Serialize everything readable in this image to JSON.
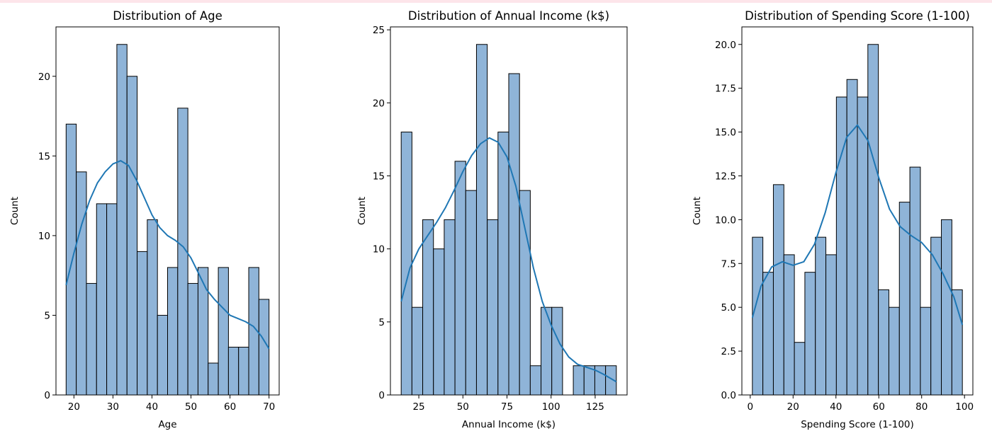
{
  "colors": {
    "bar_fill": "#8fb4d8",
    "bar_edge": "#000000",
    "kde_line": "#1f77b4",
    "background": "#ffffff"
  },
  "chart_data": [
    {
      "type": "bar",
      "title": "Distribution of Age",
      "xlabel": "Age",
      "ylabel": "Count",
      "xlim": [
        15.4,
        72.6
      ],
      "ylim": [
        0,
        23.1
      ],
      "x_ticks": [
        20,
        30,
        40,
        50,
        60,
        70
      ],
      "x_tick_labels": [
        "20",
        "30",
        "40",
        "50",
        "60",
        "70"
      ],
      "y_ticks": [
        0,
        5,
        10,
        15,
        20
      ],
      "y_tick_labels": [
        "0",
        "5",
        "10",
        "15",
        "20"
      ],
      "bin_edges": [
        18,
        20.6,
        23.2,
        25.8,
        28.4,
        31,
        33.6,
        36.2,
        38.8,
        41.4,
        44,
        46.6,
        49.2,
        51.8,
        54.4,
        57,
        59.6,
        62.2,
        64.8,
        67.4,
        70
      ],
      "values": [
        17,
        14,
        7,
        12,
        12,
        22,
        20,
        9,
        11,
        5,
        8,
        18,
        7,
        8,
        2,
        8,
        3,
        3,
        8,
        6
      ],
      "kde": {
        "x": [
          18,
          20,
          22,
          24,
          26,
          28,
          30,
          32,
          34,
          36,
          38,
          40,
          42,
          44,
          46,
          48,
          50,
          52,
          54,
          56,
          58,
          60,
          62,
          64,
          66,
          68,
          70
        ],
        "y": [
          6.9,
          8.9,
          10.7,
          12.2,
          13.3,
          14.0,
          14.5,
          14.7,
          14.4,
          13.5,
          12.4,
          11.3,
          10.5,
          10.0,
          9.7,
          9.3,
          8.6,
          7.6,
          6.6,
          6.0,
          5.5,
          5.0,
          4.8,
          4.6,
          4.3,
          3.7,
          2.9
        ]
      }
    },
    {
      "type": "bar",
      "title": "Distribution of Annual Income (k$)",
      "xlabel": "Annual Income (k$)",
      "ylabel": "Count",
      "xlim": [
        8.9,
        143.1
      ],
      "ylim": [
        0,
        25.2
      ],
      "x_ticks": [
        25,
        50,
        75,
        100,
        125
      ],
      "x_tick_labels": [
        "25",
        "50",
        "75",
        "100",
        "125"
      ],
      "y_ticks": [
        0,
        5,
        10,
        15,
        20,
        25
      ],
      "y_tick_labels": [
        "0",
        "5",
        "10",
        "15",
        "20",
        "25"
      ],
      "bin_edges": [
        15,
        21.1,
        27.2,
        33.3,
        39.4,
        45.5,
        51.6,
        57.7,
        63.8,
        69.9,
        76,
        82.1,
        88.2,
        94.3,
        100.4,
        106.5,
        112.6,
        118.7,
        124.8,
        130.9,
        137
      ],
      "values": [
        18,
        6,
        12,
        10,
        12,
        16,
        14,
        24,
        12,
        18,
        22,
        14,
        2,
        6,
        6,
        0,
        2,
        2,
        2,
        2
      ],
      "kde": {
        "x": [
          15,
          20,
          25,
          30,
          35,
          40,
          45,
          50,
          55,
          60,
          65,
          70,
          75,
          80,
          85,
          90,
          95,
          100,
          105,
          110,
          115,
          120,
          125,
          130,
          137
        ],
        "y": [
          6.4,
          8.7,
          10.0,
          10.9,
          11.8,
          12.8,
          14.0,
          15.3,
          16.4,
          17.2,
          17.6,
          17.3,
          16.3,
          14.3,
          11.5,
          8.7,
          6.4,
          4.8,
          3.5,
          2.6,
          2.1,
          1.9,
          1.7,
          1.4,
          0.9
        ]
      }
    },
    {
      "type": "bar",
      "title": "Distribution of Spending Score (1-100)",
      "xlabel": "Spending Score (1-100)",
      "ylabel": "Count",
      "xlim": [
        -3.9,
        103.9
      ],
      "ylim": [
        0,
        21
      ],
      "x_ticks": [
        0,
        20,
        40,
        60,
        80,
        100
      ],
      "x_tick_labels": [
        "0",
        "20",
        "40",
        "60",
        "80",
        "100"
      ],
      "y_ticks": [
        0,
        2.5,
        5,
        7.5,
        10,
        12.5,
        15,
        17.5,
        20
      ],
      "y_tick_labels": [
        "0.0",
        "2.5",
        "5.0",
        "7.5",
        "10.0",
        "12.5",
        "15.0",
        "17.5",
        "20.0"
      ],
      "bin_edges": [
        1,
        5.9,
        10.8,
        15.7,
        20.6,
        25.5,
        30.4,
        35.3,
        40.2,
        45.1,
        50,
        54.9,
        59.8,
        64.7,
        69.6,
        74.5,
        79.4,
        84.3,
        89.2,
        94.1,
        99
      ],
      "values": [
        9,
        7,
        12,
        8,
        3,
        7,
        9,
        8,
        17,
        18,
        17,
        20,
        6,
        5,
        11,
        13,
        5,
        9,
        10,
        6
      ],
      "kde": {
        "x": [
          1,
          5,
          10,
          15,
          20,
          25,
          30,
          35,
          40,
          45,
          50,
          55,
          60,
          65,
          70,
          75,
          80,
          85,
          90,
          95,
          99
        ],
        "y": [
          4.4,
          6.2,
          7.3,
          7.6,
          7.4,
          7.6,
          8.6,
          10.4,
          12.7,
          14.7,
          15.4,
          14.5,
          12.4,
          10.6,
          9.6,
          9.1,
          8.7,
          8.0,
          6.9,
          5.6,
          4.0
        ]
      }
    }
  ]
}
